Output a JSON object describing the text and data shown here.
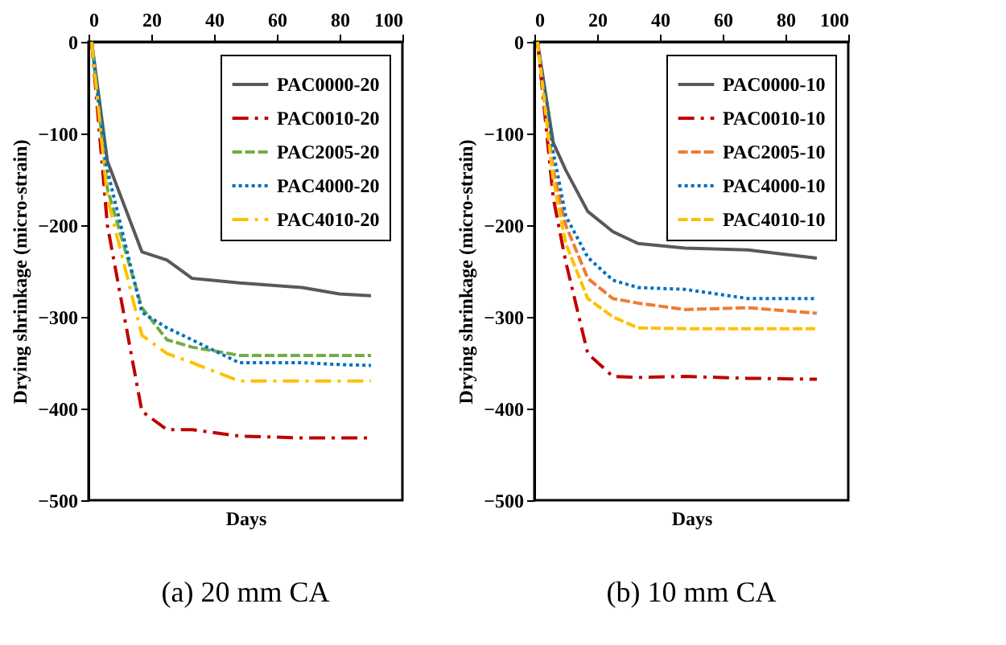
{
  "chart_data": [
    {
      "type": "line",
      "title": "(a) 20 mm CA",
      "xlabel": "Days",
      "ylabel": "Drying shrinkage (micro-strain)",
      "xlim": [
        0,
        100
      ],
      "xticks": [
        0,
        20,
        40,
        60,
        80,
        100
      ],
      "ylim": [
        -500,
        0
      ],
      "yticks": [
        -500,
        -400,
        -300,
        -200,
        -100,
        0
      ],
      "grid": false,
      "legend": "top right",
      "marker": "none",
      "x": [
        1,
        6,
        17,
        25,
        33,
        48,
        68,
        80,
        90
      ],
      "series": [
        {
          "name": "PAC0000-20",
          "color": "#595959",
          "line_style": "solid",
          "values": [
            0,
            -130,
            -229,
            -238,
            -258,
            -263,
            -268,
            -275,
            -277
          ]
        },
        {
          "name": "PAC0010-20",
          "color": "#c00000",
          "line_style": "dashdot",
          "values": [
            0,
            -200,
            -403,
            -423,
            -423,
            -430,
            -432,
            -432,
            -432
          ]
        },
        {
          "name": "PAC2005-20",
          "color": "#70ad47",
          "line_style": "dashed",
          "values": [
            0,
            -160,
            -290,
            -325,
            -333,
            -342,
            -342,
            -342,
            -342
          ]
        },
        {
          "name": "PAC4000-20",
          "color": "#0070c0",
          "line_style": "dotted",
          "values": [
            0,
            -140,
            -295,
            -312,
            -325,
            -350,
            -350,
            -352,
            -353
          ]
        },
        {
          "name": "PAC4010-20",
          "color": "#ffc000",
          "line_style": "dashdot",
          "values": [
            0,
            -170,
            -320,
            -340,
            -350,
            -370,
            -370,
            -370,
            -370
          ]
        }
      ]
    },
    {
      "type": "line",
      "title": "(b) 10 mm CA",
      "xlabel": "Days",
      "ylabel": "Drying shrinkage (micro-strain)",
      "xlim": [
        0,
        100
      ],
      "xticks": [
        0,
        20,
        40,
        60,
        80,
        100
      ],
      "ylim": [
        -500,
        0
      ],
      "yticks": [
        -500,
        -400,
        -300,
        -200,
        -100,
        0
      ],
      "grid": false,
      "legend": "top right",
      "marker": "none",
      "x": [
        1,
        6,
        10,
        17,
        25,
        33,
        48,
        68,
        90
      ],
      "series": [
        {
          "name": "PAC0000-10",
          "color": "#595959",
          "line_style": "solid",
          "values": [
            0,
            -110,
            -140,
            -185,
            -207,
            -220,
            -225,
            -227,
            -236
          ]
        },
        {
          "name": "PAC0010-10",
          "color": "#c00000",
          "line_style": "dashdot",
          "values": [
            0,
            -170,
            -240,
            -340,
            -365,
            -366,
            -365,
            -367,
            -368
          ]
        },
        {
          "name": "PAC2005-10",
          "color": "#ed7d31",
          "line_style": "dashed",
          "values": [
            0,
            -140,
            -200,
            -258,
            -280,
            -285,
            -292,
            -290,
            -296
          ]
        },
        {
          "name": "PAC4000-10",
          "color": "#0070c0",
          "line_style": "dotted",
          "values": [
            0,
            -120,
            -190,
            -235,
            -260,
            -268,
            -270,
            -280,
            -280
          ]
        },
        {
          "name": "PAC4010-10",
          "color": "#ffc000",
          "line_style": "dashed",
          "values": [
            0,
            -150,
            -220,
            -280,
            -300,
            -312,
            -313,
            -313,
            -313
          ]
        }
      ]
    }
  ]
}
